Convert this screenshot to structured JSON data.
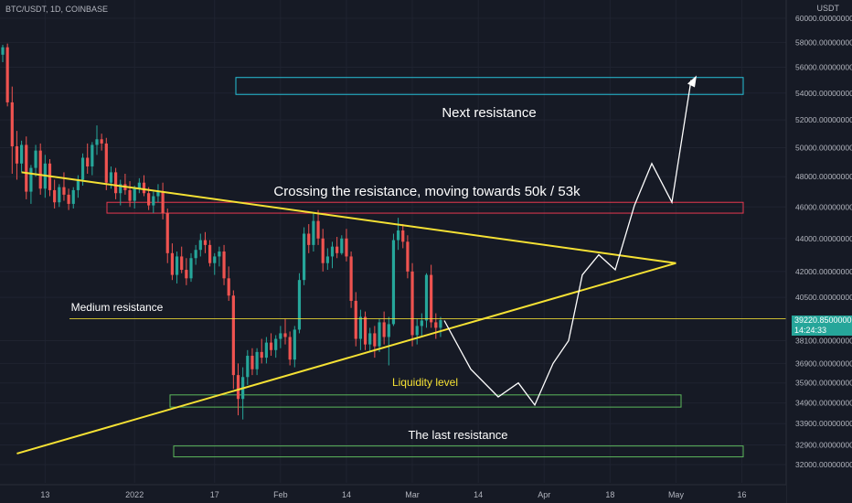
{
  "header": {
    "symbol": "BTC/USDT, 1D, COINBASE",
    "axis_unit": "USDT"
  },
  "price_tag": {
    "price": "39220.85000000",
    "countdown": "14:24:33"
  },
  "colors": {
    "background": "#161a25",
    "up": "#26a69a",
    "down": "#ef5350",
    "trend": "#f5e134",
    "projection": "#ffffff",
    "next_zone": "#27c1d8",
    "cross_zone": "#e8384f",
    "support_zone": "#5cb85c"
  },
  "chart_data": {
    "type": "candlestick",
    "y_axis": {
      "ticks": [
        "60000.00000000",
        "58000.00000000",
        "56000.00000000",
        "54000.00000000",
        "52000.00000000",
        "50000.00000000",
        "48000.00000000",
        "46000.00000000",
        "44000.00000000",
        "42000.00000000",
        "40500.00000000",
        "38100.00000000",
        "36900.00000000",
        "35900.00000000",
        "34900.00000000",
        "33900.00000000",
        "32900.00000000",
        "32000.00000000"
      ],
      "scale": "log"
    },
    "x_axis": {
      "ticks": [
        "13",
        "2022",
        "17",
        "Feb",
        "14",
        "Mar",
        "14",
        "Apr",
        "18",
        "May",
        "16"
      ]
    },
    "candles": [
      [
        57000,
        57800,
        56400,
        57600
      ],
      [
        57600,
        57900,
        53000,
        53300
      ],
      [
        53300,
        54500,
        48200,
        50100
      ],
      [
        50100,
        51200,
        47800,
        48900
      ],
      [
        48900,
        50500,
        48300,
        50200
      ],
      [
        50200,
        50800,
        46500,
        47000
      ],
      [
        47000,
        48800,
        46200,
        48600
      ],
      [
        48600,
        50200,
        48000,
        49800
      ],
      [
        49800,
        50300,
        46800,
        47200
      ],
      [
        47200,
        49500,
        46600,
        48900
      ],
      [
        48900,
        49200,
        46700,
        47100
      ],
      [
        47100,
        47800,
        45900,
        46300
      ],
      [
        46300,
        47500,
        46000,
        47300
      ],
      [
        47300,
        48300,
        46400,
        46800
      ],
      [
        46800,
        47200,
        45800,
        46200
      ],
      [
        46200,
        47300,
        45900,
        47100
      ],
      [
        47100,
        48100,
        46600,
        47800
      ],
      [
        47800,
        49600,
        47400,
        49300
      ],
      [
        49300,
        50300,
        48200,
        48700
      ],
      [
        48700,
        50400,
        48100,
        50200
      ],
      [
        50200,
        51600,
        49500,
        50600
      ],
      [
        50600,
        51000,
        49800,
        50300
      ],
      [
        50300,
        50700,
        47100,
        47600
      ],
      [
        47600,
        48700,
        47200,
        48300
      ],
      [
        48300,
        48600,
        46500,
        46900
      ],
      [
        46900,
        47800,
        46100,
        47500
      ],
      [
        47500,
        48200,
        46800,
        47100
      ],
      [
        47100,
        47700,
        46000,
        46400
      ],
      [
        46400,
        47400,
        45900,
        47200
      ],
      [
        47200,
        47900,
        46900,
        47600
      ],
      [
        47600,
        48100,
        46700,
        46900
      ],
      [
        46900,
        47300,
        45800,
        46100
      ],
      [
        46100,
        47000,
        45600,
        46700
      ],
      [
        46700,
        47500,
        46300,
        47000
      ],
      [
        47000,
        47600,
        45200,
        45600
      ],
      [
        45600,
        45900,
        42500,
        43100
      ],
      [
        43100,
        43700,
        41500,
        41800
      ],
      [
        41800,
        43200,
        41300,
        42900
      ],
      [
        42900,
        43500,
        41900,
        42100
      ],
      [
        42100,
        42800,
        41200,
        41600
      ],
      [
        41600,
        43100,
        41400,
        42800
      ],
      [
        42800,
        43600,
        42400,
        43300
      ],
      [
        43300,
        44300,
        42900,
        43900
      ],
      [
        43900,
        44400,
        43100,
        43600
      ],
      [
        43600,
        43900,
        42300,
        42500
      ],
      [
        42500,
        43100,
        41800,
        42900
      ],
      [
        42900,
        43500,
        42300,
        43200
      ],
      [
        43200,
        43600,
        41200,
        41600
      ],
      [
        41600,
        42300,
        40300,
        40600
      ],
      [
        40600,
        40900,
        35600,
        36300
      ],
      [
        36300,
        36900,
        34300,
        35100
      ],
      [
        35100,
        36700,
        34100,
        36200
      ],
      [
        36200,
        37600,
        35800,
        37300
      ],
      [
        37300,
        37700,
        36300,
        36600
      ],
      [
        36600,
        37700,
        36300,
        37500
      ],
      [
        37500,
        38200,
        36900,
        37200
      ],
      [
        37200,
        38300,
        36900,
        38000
      ],
      [
        38000,
        38500,
        37300,
        37600
      ],
      [
        37600,
        38400,
        37200,
        38200
      ],
      [
        38200,
        38900,
        37700,
        38500
      ],
      [
        38500,
        39300,
        37900,
        38300
      ],
      [
        38300,
        38600,
        36800,
        37100
      ],
      [
        37100,
        38900,
        36700,
        38700
      ],
      [
        38700,
        41900,
        38500,
        41500
      ],
      [
        41500,
        44700,
        41200,
        44300
      ],
      [
        44300,
        44900,
        43100,
        43600
      ],
      [
        43600,
        45600,
        43200,
        45100
      ],
      [
        45100,
        45800,
        43600,
        44000
      ],
      [
        44000,
        44600,
        42000,
        42500
      ],
      [
        42500,
        43400,
        42100,
        42900
      ],
      [
        42900,
        43800,
        42200,
        43500
      ],
      [
        43500,
        44100,
        42800,
        43100
      ],
      [
        43100,
        44200,
        43000,
        44000
      ],
      [
        44000,
        44600,
        42600,
        42900
      ],
      [
        42900,
        43200,
        39900,
        40300
      ],
      [
        40300,
        40800,
        37800,
        38200
      ],
      [
        38200,
        39800,
        37600,
        39400
      ],
      [
        39400,
        39700,
        37600,
        37900
      ],
      [
        37900,
        38800,
        37500,
        38500
      ],
      [
        38500,
        38900,
        37200,
        37800
      ],
      [
        37800,
        39300,
        37500,
        39100
      ],
      [
        39100,
        39700,
        37900,
        38300
      ],
      [
        38300,
        39400,
        36800,
        39000
      ],
      [
        39000,
        44300,
        38900,
        43900
      ],
      [
        43900,
        45300,
        43300,
        44500
      ],
      [
        44500,
        44900,
        43400,
        43800
      ],
      [
        43800,
        44200,
        41600,
        42000
      ],
      [
        42000,
        42500,
        37800,
        38400
      ],
      [
        38400,
        39300,
        37900,
        38900
      ],
      [
        38900,
        39600,
        38300,
        39200
      ],
      [
        39200,
        41900,
        38800,
        41800
      ],
      [
        41800,
        42400,
        38800,
        39100
      ],
      [
        39100,
        39600,
        38200,
        38800
      ],
      [
        38800,
        39400,
        38300,
        39220
      ]
    ],
    "lines": [
      {
        "name": "descending-trendline",
        "from": [
          "Dec 9",
          48300
        ],
        "to": [
          "Apr 27",
          42500
        ]
      },
      {
        "name": "ascending-trendline",
        "from": [
          "Dec 8",
          32500
        ],
        "to": [
          "Apr 27",
          42500
        ]
      },
      {
        "name": "medium-resistance-line",
        "price": 39300
      }
    ],
    "zones": [
      {
        "name": "next-resistance-zone",
        "price_low": 53900,
        "price_high": 55200
      },
      {
        "name": "crossing-resistance-zone",
        "price_low": 45600,
        "price_high": 46300
      },
      {
        "name": "liquidity-zone",
        "price_low": 34700,
        "price_high": 35300
      },
      {
        "name": "last-resistance-zone",
        "price_low": 32350,
        "price_high": 32850
      }
    ],
    "projection_path": [
      [
        39200
      ],
      [
        36600
      ],
      [
        35200
      ],
      [
        35900
      ],
      [
        34800
      ],
      [
        36900
      ],
      [
        38100
      ],
      [
        41800
      ],
      [
        43000
      ],
      [
        42100
      ],
      [
        46100
      ],
      [
        48900
      ],
      [
        46300
      ],
      [
        55000
      ]
    ],
    "annotations": {
      "next_resistance": "Next resistance",
      "crossing": "Crossing the resistance, moving towards 50k / 53k",
      "medium_resistance": "Medium resistance",
      "liquidity": "Liquidity level",
      "last_resistance": "The last resistance"
    }
  }
}
